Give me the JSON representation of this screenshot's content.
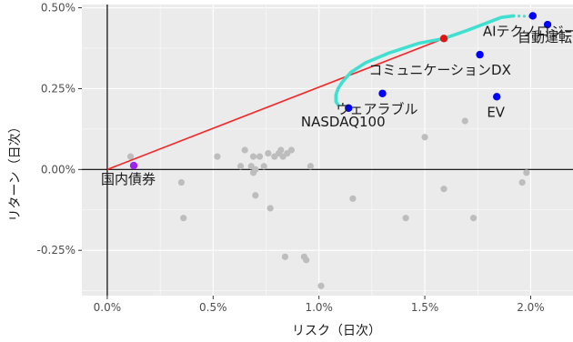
{
  "chart_data": {
    "type": "scatter",
    "title": "",
    "xlabel": "リスク（日次）",
    "ylabel": "リターン（日次）",
    "xlim": [
      -0.12,
      2.2
    ],
    "ylim": [
      -0.39,
      0.51
    ],
    "x_ticks": [
      0.0,
      0.5,
      1.0,
      1.5,
      2.0
    ],
    "y_ticks": [
      -0.25,
      0.0,
      0.25,
      0.5
    ],
    "x_tick_labels": [
      "0.0%",
      "0.5%",
      "1.0%",
      "1.5%",
      "2.0%"
    ],
    "y_tick_labels": [
      "-0.25%",
      "0.00%",
      "0.25%",
      "0.50%"
    ],
    "grid": true,
    "background_color": "#ebebeb",
    "grid_color": "#ffffff",
    "gray_points_color": "#bdbdbd",
    "gray_points": [
      [
        0.11,
        0.04
      ],
      [
        0.35,
        -0.04
      ],
      [
        0.36,
        -0.15
      ],
      [
        0.52,
        0.04
      ],
      [
        0.63,
        0.01
      ],
      [
        0.65,
        0.06
      ],
      [
        0.68,
        0.01
      ],
      [
        0.69,
        0.04
      ],
      [
        0.69,
        -0.01
      ],
      [
        0.7,
        0.0
      ],
      [
        0.7,
        -0.08
      ],
      [
        0.72,
        0.04
      ],
      [
        0.74,
        0.01
      ],
      [
        0.76,
        0.05
      ],
      [
        0.77,
        -0.12
      ],
      [
        0.79,
        0.04
      ],
      [
        0.81,
        0.05
      ],
      [
        0.82,
        0.06
      ],
      [
        0.83,
        0.04
      ],
      [
        0.84,
        -0.27
      ],
      [
        0.85,
        0.05
      ],
      [
        0.87,
        0.06
      ],
      [
        0.93,
        -0.27
      ],
      [
        0.94,
        -0.28
      ],
      [
        0.96,
        0.01
      ],
      [
        1.01,
        -0.36
      ],
      [
        1.16,
        -0.09
      ],
      [
        1.41,
        -0.15
      ],
      [
        1.5,
        0.1
      ],
      [
        1.59,
        -0.06
      ],
      [
        1.69,
        0.15
      ],
      [
        1.73,
        -0.15
      ],
      [
        1.96,
        -0.04
      ],
      [
        1.98,
        -0.01
      ]
    ],
    "frontier_color": "#40e0d0",
    "frontier_curve": [
      [
        1.09,
        0.2
      ],
      [
        1.08,
        0.21
      ],
      [
        1.08,
        0.23
      ],
      [
        1.09,
        0.25
      ],
      [
        1.11,
        0.27
      ],
      [
        1.15,
        0.3
      ],
      [
        1.22,
        0.33
      ],
      [
        1.33,
        0.36
      ],
      [
        1.47,
        0.39
      ],
      [
        1.59,
        0.405
      ],
      [
        1.7,
        0.43
      ],
      [
        1.8,
        0.455
      ],
      [
        1.86,
        0.47
      ],
      [
        1.92,
        0.475
      ]
    ],
    "capital_market_line": {
      "color": "#ff2222",
      "x": [
        0.0,
        1.59
      ],
      "y": [
        0.0,
        0.405
      ]
    },
    "tangency_point": {
      "x": 1.59,
      "y": 0.405,
      "color": "#e01414"
    },
    "named_points": [
      {
        "name": "AIテクノロジー",
        "x": 2.01,
        "y": 0.475,
        "color": "#0000ff"
      },
      {
        "name": "自動運転",
        "x": 2.08,
        "y": 0.448,
        "color": "#0000ff"
      },
      {
        "name": "コミュニケーションDX",
        "x": 1.76,
        "y": 0.355,
        "color": "#0000ff"
      },
      {
        "name": "EV",
        "x": 1.84,
        "y": 0.225,
        "color": "#0000ff"
      },
      {
        "name": "ウェアラブル",
        "x": 1.3,
        "y": 0.235,
        "color": "#0000ff"
      },
      {
        "name": "NASDAQ100",
        "x": 1.14,
        "y": 0.19,
        "color": "#0000ff"
      },
      {
        "name": "国内債券",
        "x": 0.125,
        "y": 0.012,
        "color": "#a020f0"
      }
    ]
  }
}
